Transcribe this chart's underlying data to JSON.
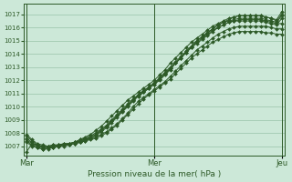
{
  "bg_color": "#cce8d8",
  "grid_color": "#99c4aa",
  "line_color": "#2d5a27",
  "title": "Pression niveau de la mer( hPa )",
  "xlabels": [
    "Mar",
    "Mer",
    "Jeu"
  ],
  "ylim": [
    1006.3,
    1017.8
  ],
  "yticks": [
    1007,
    1008,
    1009,
    1010,
    1011,
    1012,
    1013,
    1014,
    1015,
    1016,
    1017
  ],
  "num_points": 49,
  "x_tick_positions": [
    0,
    24,
    48
  ],
  "lines": [
    [
      1006.6,
      1007.2,
      1007.1,
      1007.0,
      1007.0,
      1007.1,
      1007.1,
      1007.2,
      1007.2,
      1007.3,
      1007.4,
      1007.5,
      1007.6,
      1007.7,
      1007.9,
      1008.1,
      1008.4,
      1008.7,
      1009.1,
      1009.5,
      1010.0,
      1010.4,
      1010.7,
      1011.0,
      1011.3,
      1011.6,
      1011.9,
      1012.3,
      1012.7,
      1013.1,
      1013.5,
      1013.9,
      1014.3,
      1014.6,
      1014.9,
      1015.2,
      1015.5,
      1015.7,
      1015.9,
      1016.0,
      1016.1,
      1016.1,
      1016.1,
      1016.1,
      1016.1,
      1016.1,
      1016.0,
      1015.9,
      1015.9
    ],
    [
      1007.8,
      1007.4,
      1007.1,
      1007.0,
      1007.0,
      1007.0,
      1007.0,
      1007.1,
      1007.1,
      1007.2,
      1007.3,
      1007.4,
      1007.5,
      1007.6,
      1007.8,
      1008.0,
      1008.3,
      1008.6,
      1009.0,
      1009.4,
      1009.8,
      1010.2,
      1010.6,
      1010.9,
      1011.2,
      1011.5,
      1011.8,
      1012.1,
      1012.5,
      1012.9,
      1013.3,
      1013.7,
      1014.0,
      1014.3,
      1014.6,
      1014.9,
      1015.1,
      1015.3,
      1015.5,
      1015.6,
      1015.7,
      1015.7,
      1015.7,
      1015.7,
      1015.7,
      1015.6,
      1015.6,
      1015.5,
      1015.5
    ],
    [
      1007.5,
      1007.2,
      1007.0,
      1006.9,
      1006.9,
      1006.9,
      1007.0,
      1007.0,
      1007.1,
      1007.2,
      1007.3,
      1007.4,
      1007.6,
      1007.8,
      1008.1,
      1008.4,
      1008.8,
      1009.2,
      1009.6,
      1010.0,
      1010.4,
      1010.8,
      1011.1,
      1011.4,
      1011.7,
      1012.0,
      1012.4,
      1012.8,
      1013.3,
      1013.7,
      1014.1,
      1014.5,
      1014.8,
      1015.1,
      1015.4,
      1015.7,
      1016.0,
      1016.2,
      1016.4,
      1016.5,
      1016.6,
      1016.6,
      1016.6,
      1016.6,
      1016.6,
      1016.5,
      1016.4,
      1016.3,
      1016.3
    ],
    [
      1007.3,
      1007.0,
      1006.9,
      1006.8,
      1006.8,
      1006.9,
      1007.0,
      1007.1,
      1007.1,
      1007.2,
      1007.3,
      1007.5,
      1007.7,
      1007.9,
      1008.2,
      1008.5,
      1008.9,
      1009.3,
      1009.7,
      1010.1,
      1010.5,
      1010.9,
      1011.2,
      1011.5,
      1011.8,
      1012.1,
      1012.5,
      1012.9,
      1013.3,
      1013.7,
      1014.2,
      1014.6,
      1015.0,
      1015.3,
      1015.6,
      1015.9,
      1016.2,
      1016.4,
      1016.6,
      1016.8,
      1016.9,
      1016.9,
      1016.9,
      1016.9,
      1016.9,
      1016.8,
      1016.7,
      1016.6,
      1017.2
    ],
    [
      1007.9,
      1007.5,
      1007.2,
      1007.1,
      1007.0,
      1007.1,
      1007.1,
      1007.2,
      1007.2,
      1007.3,
      1007.5,
      1007.6,
      1007.8,
      1008.0,
      1008.3,
      1008.6,
      1009.0,
      1009.4,
      1009.8,
      1010.2,
      1010.6,
      1010.9,
      1011.2,
      1011.5,
      1011.8,
      1012.2,
      1012.6,
      1013.0,
      1013.4,
      1013.8,
      1014.2,
      1014.6,
      1015.0,
      1015.3,
      1015.6,
      1015.9,
      1016.2,
      1016.4,
      1016.5,
      1016.6,
      1016.7,
      1016.7,
      1016.7,
      1016.7,
      1016.7,
      1016.6,
      1016.5,
      1016.4,
      1016.9
    ],
    [
      1007.6,
      1007.3,
      1007.0,
      1007.0,
      1007.0,
      1007.0,
      1007.1,
      1007.1,
      1007.2,
      1007.3,
      1007.4,
      1007.5,
      1007.7,
      1007.9,
      1008.2,
      1008.5,
      1008.9,
      1009.3,
      1009.7,
      1010.1,
      1010.5,
      1010.8,
      1011.1,
      1011.4,
      1011.7,
      1012.1,
      1012.5,
      1012.9,
      1013.3,
      1013.7,
      1014.1,
      1014.5,
      1014.9,
      1015.2,
      1015.5,
      1015.8,
      1016.0,
      1016.2,
      1016.4,
      1016.5,
      1016.5,
      1016.5,
      1016.5,
      1016.5,
      1016.5,
      1016.4,
      1016.3,
      1016.2,
      1016.7
    ],
    [
      1007.4,
      1007.1,
      1006.9,
      1006.8,
      1006.9,
      1006.9,
      1007.0,
      1007.1,
      1007.2,
      1007.3,
      1007.5,
      1007.7,
      1007.9,
      1008.2,
      1008.5,
      1008.9,
      1009.3,
      1009.7,
      1010.1,
      1010.5,
      1010.8,
      1011.1,
      1011.4,
      1011.7,
      1012.0,
      1012.4,
      1012.8,
      1013.3,
      1013.7,
      1014.1,
      1014.5,
      1014.9,
      1015.2,
      1015.5,
      1015.8,
      1016.1,
      1016.3,
      1016.5,
      1016.7,
      1016.8,
      1016.9,
      1016.9,
      1016.9,
      1016.9,
      1016.9,
      1016.8,
      1016.7,
      1016.5,
      1017.0
    ]
  ]
}
